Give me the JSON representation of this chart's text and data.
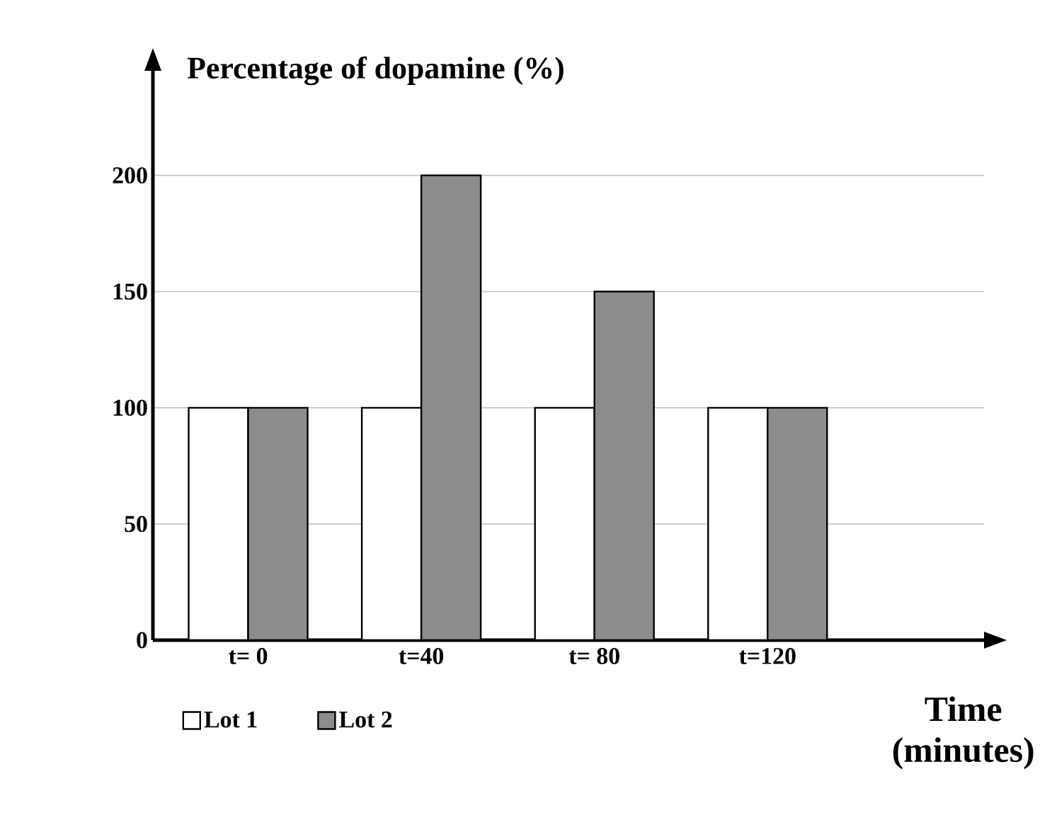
{
  "chart_data": {
    "type": "bar",
    "ylabel": "Percentage of dopamine (%)",
    "xlabel": "Time (minutes)",
    "categories": [
      "t= 0",
      "t=40",
      "t= 80",
      "t=120"
    ],
    "series": [
      {
        "name": "Lot 1",
        "color": "#ffffff",
        "values": [
          100,
          100,
          100,
          100
        ]
      },
      {
        "name": "Lot 2",
        "color": "#8c8c8c",
        "values": [
          100,
          200,
          150,
          100
        ]
      }
    ],
    "ylim": [
      0,
      245
    ],
    "yticks": [
      0,
      50,
      100,
      150,
      200
    ],
    "grid": "y",
    "legend": "bottom"
  }
}
